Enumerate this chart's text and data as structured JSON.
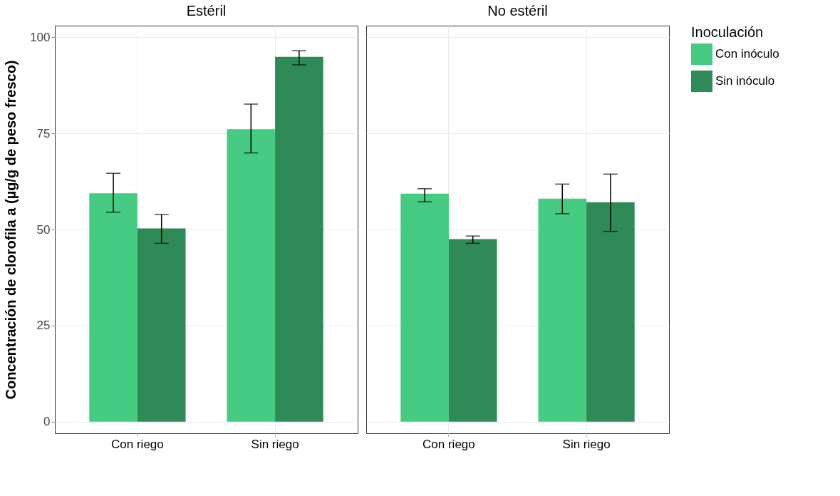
{
  "chart_data": [
    {
      "type": "bar",
      "title": "Estéril",
      "legend": "right",
      "legend_title": "Inoculación",
      "ylabel": "Concentración de clorofila a (µg/g de peso fresco)",
      "categories": [
        "Con riego",
        "Sin riego"
      ],
      "ylim": [
        -3,
        103
      ],
      "yticks": [
        0,
        25,
        50,
        75,
        100
      ],
      "grid": true,
      "series": [
        {
          "name": "Con inóculo",
          "color": "#45cc82",
          "values": [
            59.4,
            76.1
          ],
          "errors": [
            [
              54.5,
              64.6
            ],
            [
              69.9,
              82.6
            ]
          ]
        },
        {
          "name": "Sin inóculo",
          "color": "#2e8b57",
          "values": [
            50.3,
            94.9
          ],
          "errors": [
            [
              46.4,
              53.9
            ],
            [
              92.8,
              96.5
            ]
          ]
        }
      ]
    },
    {
      "type": "bar",
      "title": "No estéril",
      "categories": [
        "Con riego",
        "Sin riego"
      ],
      "ylim": [
        -3,
        103
      ],
      "yticks": [
        0,
        25,
        50,
        75,
        100
      ],
      "tick_labels": "x",
      "grid": true,
      "legend": "right",
      "series": [
        {
          "name": "Con inóculo",
          "color": "#45cc82",
          "values": [
            59.3,
            58.0
          ],
          "errors": [
            [
              57.2,
              60.6
            ],
            [
              54.1,
              61.8
            ]
          ]
        },
        {
          "name": "Sin inóculo",
          "color": "#2e8b57",
          "values": [
            47.5,
            57.1
          ],
          "errors": [
            [
              46.4,
              48.3
            ],
            [
              49.5,
              64.4
            ]
          ]
        }
      ]
    }
  ]
}
